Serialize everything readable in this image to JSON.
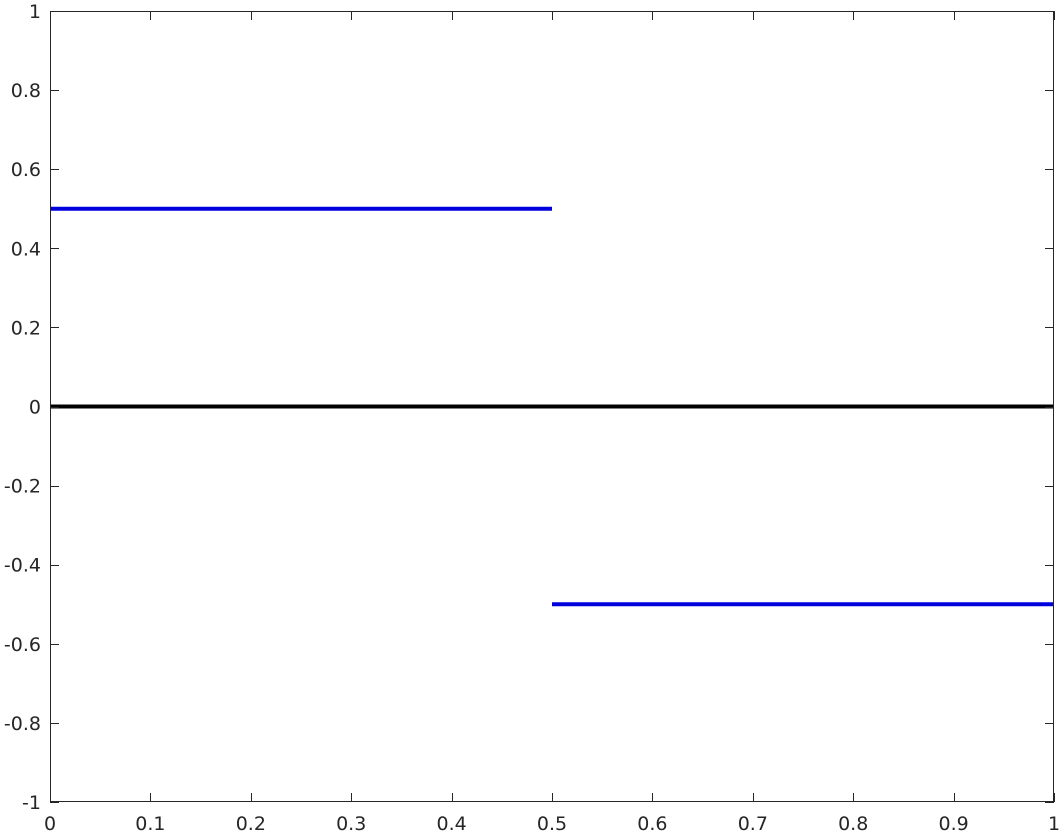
{
  "chart_data": {
    "type": "line",
    "title": "",
    "xlabel": "",
    "ylabel": "",
    "xlim": [
      0,
      1
    ],
    "ylim": [
      -1,
      1
    ],
    "grid": false,
    "box": true,
    "x_ticks": [
      0,
      0.1,
      0.2,
      0.3,
      0.4,
      0.5,
      0.6,
      0.7,
      0.8,
      0.9,
      1
    ],
    "x_tick_labels": [
      "0",
      "0.1",
      "0.2",
      "0.3",
      "0.4",
      "0.5",
      "0.6",
      "0.7",
      "0.8",
      "0.9",
      "1"
    ],
    "y_ticks": [
      1,
      0.8,
      0.6,
      0.4,
      0.2,
      0,
      -0.2,
      -0.4,
      -0.6,
      -0.8,
      -1
    ],
    "y_tick_labels": [
      "1",
      "0.8",
      "0.6",
      "0.4",
      "0.2",
      "0",
      "-0.2",
      "-0.4",
      "-0.6",
      "-0.8",
      "-1"
    ],
    "series": [
      {
        "color": "#0000dd",
        "segments": [
          {
            "x": [
              0,
              0.5
            ],
            "y": [
              0.5,
              0.5
            ]
          },
          {
            "x": [
              0.5,
              1
            ],
            "y": [
              -0.5,
              -0.5
            ]
          }
        ]
      },
      {
        "color": "#000000",
        "segments": [
          {
            "x": [
              0,
              1
            ],
            "y": [
              0,
              0
            ]
          }
        ]
      }
    ]
  }
}
